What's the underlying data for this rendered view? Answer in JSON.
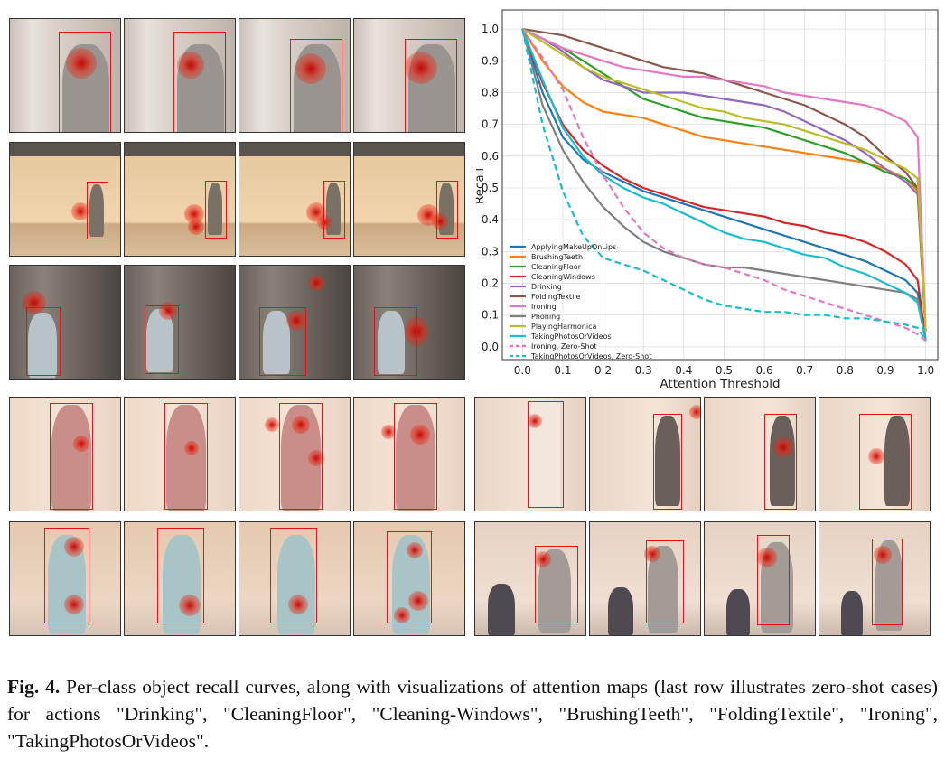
{
  "caption": {
    "label": "Fig. 4.",
    "text": "Per-class object recall curves, along with visualizations of attention maps (last row illustrates zero-shot cases) for actions \"Drinking\", \"CleaningFloor\", \"Cleaning-Windows\", \"BrushingTeeth\", \"FoldingTextile\", \"Ironing\", \"TakingPhotosOrVideos\"."
  },
  "colors": {
    "bbox": "#e0151b",
    "heat": "#c80000"
  },
  "chart_data": {
    "type": "line",
    "title": "",
    "xlabel": "Attention Threshold",
    "ylabel": "Recall",
    "xlim": [
      -0.05,
      1.03
    ],
    "ylim": [
      -0.04,
      1.06
    ],
    "xticks": [
      "0.0",
      "0.1",
      "0.2",
      "0.3",
      "0.4",
      "0.5",
      "0.6",
      "0.7",
      "0.8",
      "0.9",
      "1.0"
    ],
    "yticks": [
      "0.0",
      "0.1",
      "0.2",
      "0.3",
      "0.4",
      "0.5",
      "0.6",
      "0.7",
      "0.8",
      "0.9",
      "1.0"
    ],
    "grid": true,
    "legend_position": "bottom-left",
    "x": [
      0.0,
      0.05,
      0.1,
      0.15,
      0.2,
      0.25,
      0.3,
      0.35,
      0.4,
      0.45,
      0.5,
      0.55,
      0.6,
      0.65,
      0.7,
      0.75,
      0.8,
      0.85,
      0.9,
      0.95,
      0.98,
      1.0
    ],
    "series": [
      {
        "name": "ApplyingMakeUpOnLips",
        "color": "#1f77b4",
        "dash": false,
        "values": [
          1.0,
          0.8,
          0.66,
          0.59,
          0.55,
          0.52,
          0.49,
          0.47,
          0.45,
          0.43,
          0.41,
          0.39,
          0.37,
          0.35,
          0.33,
          0.31,
          0.29,
          0.27,
          0.24,
          0.21,
          0.17,
          0.02
        ]
      },
      {
        "name": "BrushingTeeth",
        "color": "#ff7f0e",
        "dash": false,
        "values": [
          1.0,
          0.9,
          0.82,
          0.77,
          0.74,
          0.73,
          0.72,
          0.7,
          0.68,
          0.66,
          0.65,
          0.64,
          0.63,
          0.62,
          0.61,
          0.6,
          0.59,
          0.58,
          0.56,
          0.53,
          0.49,
          0.05
        ]
      },
      {
        "name": "CleaningFloor",
        "color": "#2ca02c",
        "dash": false,
        "values": [
          1.0,
          0.97,
          0.94,
          0.9,
          0.86,
          0.82,
          0.78,
          0.76,
          0.74,
          0.72,
          0.71,
          0.7,
          0.69,
          0.67,
          0.65,
          0.63,
          0.61,
          0.58,
          0.55,
          0.53,
          0.5,
          0.05
        ]
      },
      {
        "name": "CleaningWindows",
        "color": "#d62728",
        "dash": false,
        "values": [
          1.0,
          0.83,
          0.7,
          0.62,
          0.57,
          0.53,
          0.5,
          0.48,
          0.46,
          0.44,
          0.43,
          0.42,
          0.41,
          0.39,
          0.38,
          0.36,
          0.35,
          0.33,
          0.3,
          0.26,
          0.21,
          0.02
        ]
      },
      {
        "name": "Drinking",
        "color": "#9467bd",
        "dash": false,
        "values": [
          1.0,
          0.97,
          0.93,
          0.88,
          0.84,
          0.82,
          0.8,
          0.8,
          0.8,
          0.79,
          0.78,
          0.77,
          0.76,
          0.74,
          0.71,
          0.68,
          0.65,
          0.61,
          0.56,
          0.52,
          0.48,
          0.05
        ]
      },
      {
        "name": "FoldingTextile",
        "color": "#8c564b",
        "dash": false,
        "values": [
          1.0,
          0.99,
          0.98,
          0.96,
          0.94,
          0.92,
          0.9,
          0.88,
          0.87,
          0.86,
          0.84,
          0.82,
          0.8,
          0.78,
          0.76,
          0.73,
          0.7,
          0.66,
          0.6,
          0.55,
          0.5,
          0.05
        ]
      },
      {
        "name": "Ironing",
        "color": "#e377c2",
        "dash": false,
        "values": [
          1.0,
          0.97,
          0.94,
          0.92,
          0.9,
          0.88,
          0.87,
          0.86,
          0.85,
          0.85,
          0.84,
          0.83,
          0.82,
          0.8,
          0.79,
          0.78,
          0.77,
          0.76,
          0.74,
          0.71,
          0.66,
          0.06
        ]
      },
      {
        "name": "Phoning",
        "color": "#7f7f7f",
        "dash": false,
        "values": [
          1.0,
          0.76,
          0.62,
          0.52,
          0.44,
          0.38,
          0.33,
          0.3,
          0.28,
          0.26,
          0.25,
          0.25,
          0.24,
          0.23,
          0.22,
          0.21,
          0.2,
          0.19,
          0.18,
          0.17,
          0.15,
          0.02
        ]
      },
      {
        "name": "PlayingHarmonica",
        "color": "#bcbd22",
        "dash": false,
        "values": [
          1.0,
          0.96,
          0.92,
          0.88,
          0.85,
          0.83,
          0.81,
          0.79,
          0.77,
          0.75,
          0.74,
          0.72,
          0.71,
          0.7,
          0.68,
          0.66,
          0.64,
          0.62,
          0.59,
          0.56,
          0.53,
          0.05
        ]
      },
      {
        "name": "TakingPhotosOrVideos",
        "color": "#17becf",
        "dash": false,
        "values": [
          1.0,
          0.84,
          0.69,
          0.6,
          0.54,
          0.5,
          0.47,
          0.45,
          0.42,
          0.39,
          0.36,
          0.34,
          0.33,
          0.31,
          0.29,
          0.28,
          0.25,
          0.23,
          0.2,
          0.17,
          0.14,
          0.02
        ]
      },
      {
        "name": "Ironing, Zero-Shot",
        "color": "#e377c2",
        "dash": true,
        "values": [
          1.0,
          0.91,
          0.81,
          0.66,
          0.54,
          0.44,
          0.36,
          0.31,
          0.28,
          0.26,
          0.25,
          0.23,
          0.21,
          0.18,
          0.16,
          0.14,
          0.12,
          0.1,
          0.08,
          0.06,
          0.04,
          0.02
        ]
      },
      {
        "name": "TakingPhotosOrVideos, Zero-Shot",
        "color": "#17becf",
        "dash": true,
        "values": [
          1.0,
          0.7,
          0.49,
          0.35,
          0.28,
          0.26,
          0.24,
          0.21,
          0.18,
          0.15,
          0.13,
          0.12,
          0.11,
          0.11,
          0.1,
          0.1,
          0.09,
          0.09,
          0.08,
          0.07,
          0.06,
          0.02
        ]
      }
    ]
  }
}
